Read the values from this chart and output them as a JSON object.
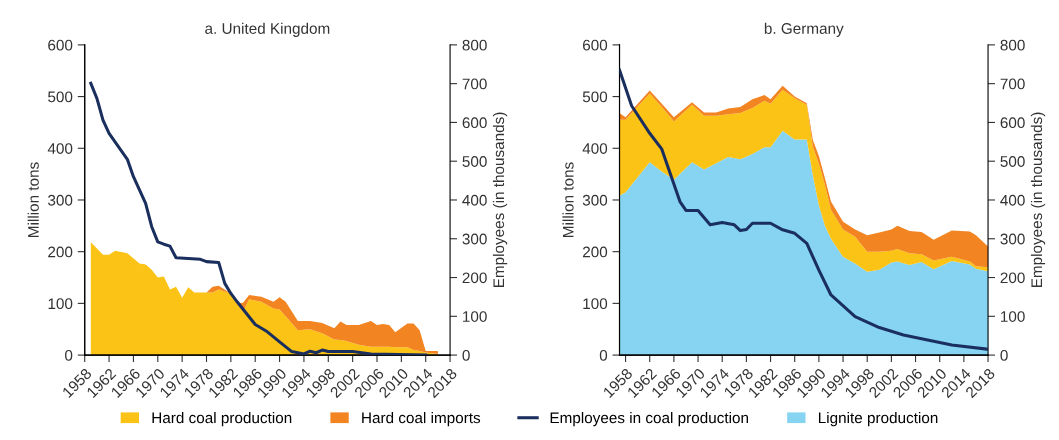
{
  "chart_data": [
    {
      "type": "area",
      "stacked": true,
      "title": "a. United Kingdom",
      "ylabel": "Million tons",
      "y2label": "Employees (in thousands)",
      "legend": "bottom",
      "x": [
        1959,
        1961,
        1962,
        1963,
        1965,
        1967,
        1968,
        1969,
        1970,
        1971,
        1972,
        1973,
        1974,
        1975,
        1976,
        1978,
        1979,
        1980,
        1982,
        1983,
        1984,
        1985,
        1987,
        1989,
        1990,
        1991,
        1993,
        1995,
        1997,
        1999,
        2000,
        2001,
        2003,
        2005,
        2006,
        2007,
        2008,
        2009,
        2011,
        2012,
        2013,
        2014,
        2016
      ],
      "xlim": [
        1958,
        2018
      ],
      "xticks": [
        1958,
        1962,
        1966,
        1970,
        1974,
        1978,
        1982,
        1986,
        1990,
        1994,
        1998,
        2002,
        2006,
        2010,
        2014,
        2018
      ],
      "ylim": [
        0,
        600
      ],
      "yticks": [
        0,
        100,
        200,
        300,
        400,
        500,
        600
      ],
      "y2lim": [
        0,
        800
      ],
      "y2ticks": [
        0,
        100,
        200,
        300,
        400,
        500,
        600,
        700,
        800
      ],
      "series": [
        {
          "name": "Hard coal production",
          "color": "#fbc315",
          "values": [
            218,
            194,
            194,
            202,
            197,
            177,
            175,
            165,
            150,
            152,
            127,
            132,
            111,
            131,
            121,
            121,
            121,
            127,
            119,
            100,
            84,
            108,
            103,
            90,
            88,
            75,
            48,
            50,
            42,
            30,
            29,
            27,
            20,
            16,
            16,
            16,
            16,
            15,
            15,
            10,
            8,
            5,
            2
          ]
        },
        {
          "name": "Hard coal imports",
          "color": "#f28421",
          "values": [
            0,
            0,
            0,
            0,
            0,
            0,
            0,
            0,
            0,
            0,
            0,
            0,
            0,
            0,
            0,
            0,
            11,
            7,
            0,
            0,
            17,
            8,
            10,
            13,
            24,
            28,
            18,
            16,
            20,
            22,
            36,
            31,
            38,
            50,
            42,
            44,
            42,
            29,
            46,
            51,
            40,
            3,
            6
          ]
        },
        {
          "name": "Employees in coal production",
          "type": "line",
          "axis": "y2",
          "color": "#1b2f5f",
          "x": [
            1959,
            1960,
            1961,
            1962,
            1965,
            1966,
            1968,
            1969,
            1970,
            1971,
            1972,
            1973,
            1977,
            1978,
            1980,
            1981,
            1982,
            1983,
            1986,
            1988,
            1990,
            1992,
            1994,
            1995,
            1996,
            1997,
            1998,
            2002,
            2005,
            2014
          ],
          "values": [
            701,
            662,
            606,
            572,
            505,
            460,
            391,
            331,
            292,
            286,
            281,
            251,
            247,
            241,
            239,
            185,
            159,
            138,
            79,
            60,
            34,
            9,
            3,
            10,
            6,
            13,
            9,
            9,
            3,
            0
          ]
        }
      ]
    },
    {
      "type": "area",
      "stacked": true,
      "title": "b. Germany",
      "ylabel": "Million tons",
      "y2label": "Employees (in thousands)",
      "legend": "bottom",
      "x": [
        1957,
        1958,
        1962,
        1964,
        1966,
        1969,
        1971,
        1973,
        1975,
        1977,
        1979,
        1981,
        1982,
        1984,
        1986,
        1988,
        1989,
        1990,
        1991,
        1992,
        1994,
        1996,
        1998,
        2000,
        2002,
        2003,
        2005,
        2007,
        2009,
        2012,
        2015,
        2016,
        2018
      ],
      "xlim": [
        1957,
        2018
      ],
      "xticks": [
        1958,
        1962,
        1966,
        1970,
        1974,
        1978,
        1982,
        1986,
        1990,
        1994,
        1998,
        2002,
        2006,
        2010,
        2014,
        2018
      ],
      "ylim": [
        0,
        600
      ],
      "yticks": [
        0,
        100,
        200,
        300,
        400,
        500,
        600
      ],
      "y2lim": [
        0,
        800
      ],
      "y2ticks": [
        0,
        100,
        200,
        300,
        400,
        500,
        600,
        700,
        800
      ],
      "series": [
        {
          "name": "Lignite production",
          "color": "#86d4f2",
          "values": [
            308,
            315,
            373,
            355,
            339,
            373,
            359,
            371,
            383,
            379,
            389,
            402,
            402,
            434,
            417,
            417,
            348,
            290,
            250,
            225,
            190,
            177,
            161,
            165,
            179,
            181,
            174,
            180,
            166,
            182,
            175,
            167,
            162
          ]
        },
        {
          "name": "Hard coal production",
          "color": "#fbc315",
          "values": [
            147,
            140,
            133,
            125,
            113,
            111,
            104,
            92,
            83,
            89,
            89,
            90,
            84,
            79,
            80,
            67,
            55,
            80,
            79,
            56,
            53,
            52,
            39,
            35,
            23,
            24,
            23,
            15,
            17,
            8,
            6,
            5,
            8
          ]
        },
        {
          "name": "Hard coal imports",
          "color": "#f28421",
          "values": [
            13,
            5,
            6,
            6,
            8,
            5,
            6,
            6,
            11,
            12,
            17,
            11,
            9,
            8,
            3,
            3,
            13,
            15,
            13,
            16,
            15,
            14,
            32,
            37,
            41,
            45,
            43,
            43,
            40,
            51,
            58,
            60,
            40
          ]
        },
        {
          "name": "Employees in coal production",
          "type": "line",
          "axis": "y2",
          "color": "#1b2f5f",
          "x": [
            1957,
            1959,
            1962,
            1964,
            1967,
            1968,
            1970,
            1972,
            1974,
            1976,
            1977,
            1978,
            1979,
            1982,
            1984,
            1986,
            1988,
            1990,
            1992,
            1996,
            2000,
            2004,
            2008,
            2012,
            2018
          ],
          "values": [
            735,
            643,
            572,
            531,
            396,
            373,
            373,
            336,
            342,
            336,
            321,
            324,
            340,
            340,
            323,
            314,
            288,
            219,
            155,
            99,
            71,
            52,
            39,
            26,
            15
          ]
        }
      ]
    }
  ]
}
